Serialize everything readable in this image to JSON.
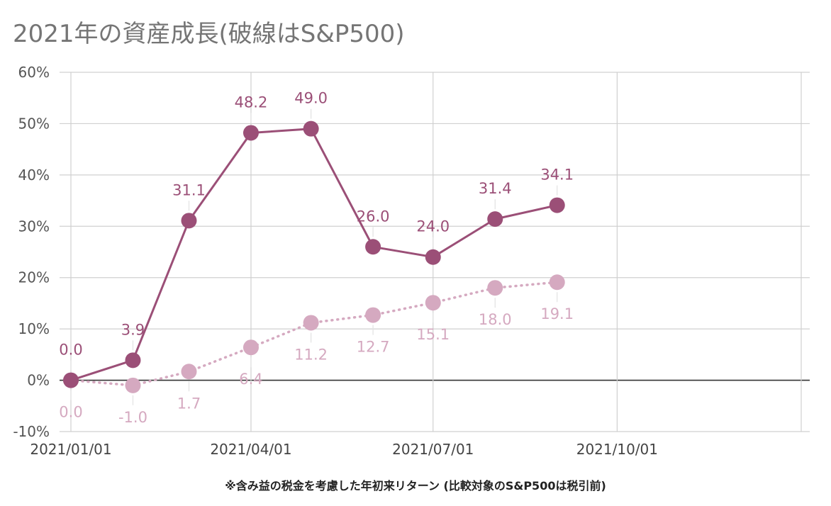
{
  "chart_data": {
    "type": "line",
    "title": "2021年の資産成長(破線はS&P500)",
    "footnote": "※含み益の税金を考慮した年初来リターン (比較対象のS&P500は税引前)",
    "xlabel": "",
    "ylabel": "",
    "x_ticks": [
      {
        "date": "2021-01-01",
        "label": "2021/01/01"
      },
      {
        "date": "2021-04-01",
        "label": "2021/04/01"
      },
      {
        "date": "2021-07-01",
        "label": "2021/07/01"
      },
      {
        "date": "2021-10-01",
        "label": "2021/10/01"
      }
    ],
    "xlim": [
      "2021-01-01",
      "2022-01-01"
    ],
    "y_ticks": [
      {
        "value": -10,
        "label": "-10%"
      },
      {
        "value": 0,
        "label": "0%"
      },
      {
        "value": 10,
        "label": "10%"
      },
      {
        "value": 20,
        "label": "20%"
      },
      {
        "value": 30,
        "label": "30%"
      },
      {
        "value": 40,
        "label": "40%"
      },
      {
        "value": 50,
        "label": "50%"
      },
      {
        "value": 60,
        "label": "60%"
      }
    ],
    "ylim": [
      -10,
      60
    ],
    "grid": true,
    "series": [
      {
        "style": "solid",
        "color": "#9b4f77",
        "label_position": "above",
        "points": [
          {
            "x": "2021-01-01",
            "y": 0.0,
            "label": "0.0"
          },
          {
            "x": "2021-02-01",
            "y": 3.9,
            "label": "3.9"
          },
          {
            "x": "2021-03-01",
            "y": 31.1,
            "label": "31.1"
          },
          {
            "x": "2021-04-01",
            "y": 48.2,
            "label": "48.2"
          },
          {
            "x": "2021-05-01",
            "y": 49.0,
            "label": "49.0"
          },
          {
            "x": "2021-06-01",
            "y": 26.0,
            "label": "26.0"
          },
          {
            "x": "2021-07-01",
            "y": 24.0,
            "label": "24.0"
          },
          {
            "x": "2021-08-01",
            "y": 31.4,
            "label": "31.4"
          },
          {
            "x": "2021-09-01",
            "y": 34.1,
            "label": "34.1"
          }
        ]
      },
      {
        "style": "dotted",
        "color": "#d5a9c0",
        "label_position": "below",
        "points": [
          {
            "x": "2021-01-01",
            "y": 0.0,
            "label": "0.0"
          },
          {
            "x": "2021-02-01",
            "y": -1.0,
            "label": "-1.0"
          },
          {
            "x": "2021-03-01",
            "y": 1.7,
            "label": "1.7"
          },
          {
            "x": "2021-04-01",
            "y": 6.4,
            "label": "6.4"
          },
          {
            "x": "2021-05-01",
            "y": 11.2,
            "label": "11.2"
          },
          {
            "x": "2021-06-01",
            "y": 12.7,
            "label": "12.7"
          },
          {
            "x": "2021-07-01",
            "y": 15.1,
            "label": "15.1"
          },
          {
            "x": "2021-08-01",
            "y": 18.0,
            "label": "18.0"
          },
          {
            "x": "2021-09-01",
            "y": 19.1,
            "label": "19.1"
          }
        ]
      }
    ]
  }
}
